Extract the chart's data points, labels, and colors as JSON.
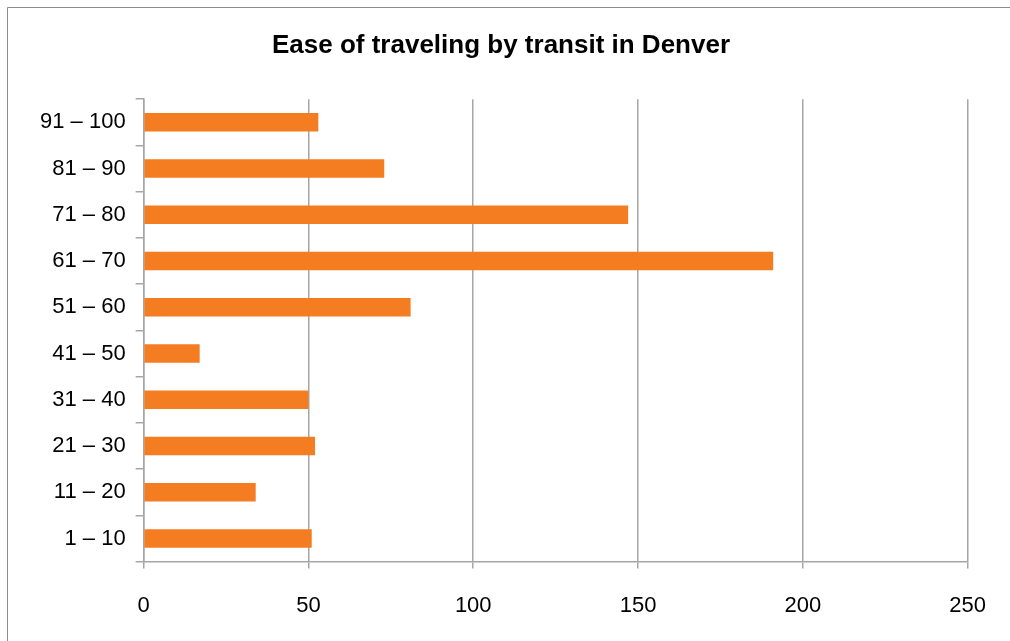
{
  "chart_data": {
    "type": "bar",
    "orientation": "horizontal",
    "title": "Ease of traveling by transit in Denver",
    "categories": [
      "91 – 100",
      "81 – 90",
      "71 – 80",
      "61 – 70",
      "51 – 60",
      "41 – 50",
      "31 – 40",
      "21 – 30",
      "11 – 20",
      "1 – 10"
    ],
    "values": [
      53,
      73,
      147,
      191,
      81,
      17,
      50,
      52,
      34,
      51
    ],
    "color": "#f47d22",
    "xlim": [
      0,
      250
    ],
    "xticks": [
      0,
      50,
      100,
      150,
      200,
      250
    ],
    "grid": "x"
  }
}
